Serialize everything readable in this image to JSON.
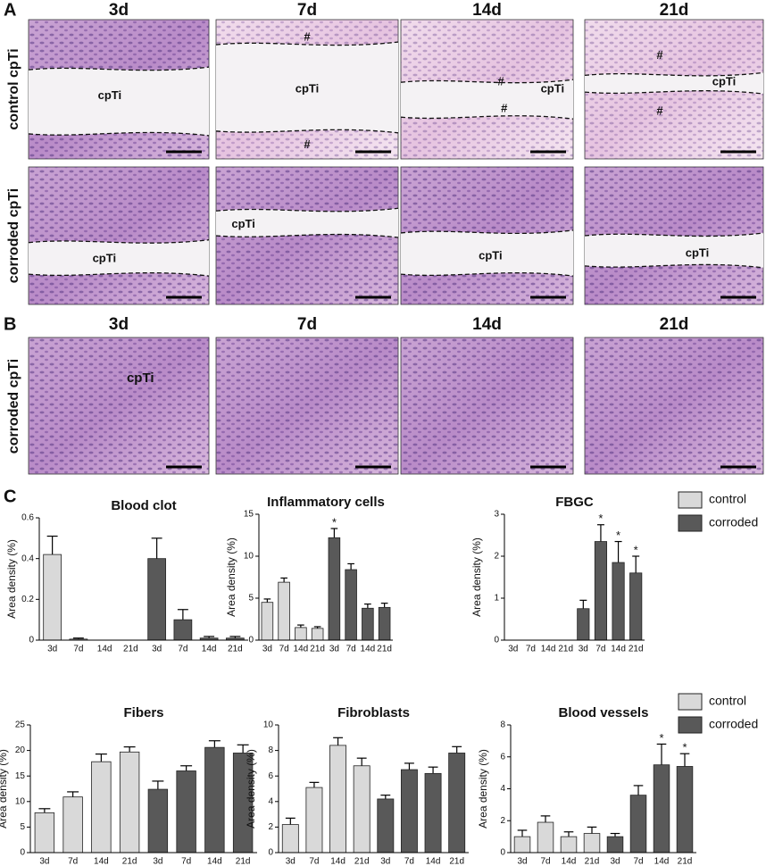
{
  "panel_a": {
    "label": "A",
    "columns": [
      "3d",
      "7d",
      "14d",
      "21d"
    ],
    "rows": [
      {
        "label": "control cpTi",
        "tiles": [
          [
            "cpTi"
          ],
          [
            "#",
            "cpTi",
            "#"
          ],
          [
            "#",
            "cpTi",
            "#"
          ],
          [
            "#",
            "cpTi",
            "#"
          ]
        ]
      },
      {
        "label": "corroded cpTi",
        "tiles": [
          [
            "cpTi"
          ],
          [
            "cpTi"
          ],
          [
            "cpTi"
          ],
          [
            "cpTi"
          ]
        ]
      }
    ]
  },
  "panel_b": {
    "label": "B",
    "columns": [
      "3d",
      "7d",
      "14d",
      "21d"
    ],
    "row_label": "corroded cpTi",
    "tiles": [
      [
        "cpTi"
      ],
      [],
      [],
      []
    ]
  },
  "panel_c": {
    "label": "C"
  },
  "chart_data": [
    {
      "type": "bar",
      "title": "Blood clot",
      "ylabel": "Area density  (%)",
      "categories": [
        "3d",
        "7d",
        "14d",
        "21d"
      ],
      "ylim": [
        0,
        0.6
      ],
      "yticks": [
        0,
        0.2,
        0.4,
        0.6
      ],
      "legend": false,
      "series": [
        {
          "color": "#d9d9d9",
          "values": [
            0.42,
            0.005,
            0,
            0
          ],
          "errors": [
            0.09,
            0.005,
            0,
            0
          ]
        },
        {
          "color": "#595959",
          "values": [
            0.4,
            0.1,
            0.01,
            0.01
          ],
          "errors": [
            0.1,
            0.05,
            0.008,
            0.008
          ]
        }
      ]
    },
    {
      "type": "bar",
      "title": "Inflammatory cells",
      "ylabel": "Area density  (%)",
      "categories": [
        "3d",
        "7d",
        "14d",
        "21d"
      ],
      "ylim": [
        0,
        15
      ],
      "yticks": [
        0,
        5,
        10,
        15
      ],
      "legend": false,
      "series": [
        {
          "color": "#d9d9d9",
          "values": [
            4.5,
            6.9,
            1.5,
            1.4
          ],
          "errors": [
            0.4,
            0.5,
            0.3,
            0.2
          ]
        },
        {
          "color": "#595959",
          "values": [
            12.2,
            8.4,
            3.8,
            3.9
          ],
          "errors": [
            1.1,
            0.7,
            0.5,
            0.5
          ]
        }
      ],
      "annotations": [
        {
          "text": "*",
          "series": 1,
          "index": 0
        }
      ]
    },
    {
      "type": "bar",
      "title": "FBGC",
      "ylabel": "Area density  (%)",
      "categories": [
        "3d",
        "7d",
        "14d",
        "21d"
      ],
      "ylim": [
        0,
        3
      ],
      "yticks": [
        0,
        1,
        2,
        3
      ],
      "legend": true,
      "series": [
        {
          "name": "control",
          "color": "#d9d9d9",
          "values": [
            0,
            0,
            0,
            0
          ],
          "errors": [
            0,
            0,
            0,
            0
          ]
        },
        {
          "name": "corroded",
          "color": "#595959",
          "values": [
            0.75,
            2.35,
            1.85,
            1.6
          ],
          "errors": [
            0.2,
            0.4,
            0.5,
            0.4
          ]
        }
      ],
      "annotations": [
        {
          "text": "*",
          "series": 1,
          "index": 1
        },
        {
          "text": "*",
          "series": 1,
          "index": 2
        },
        {
          "text": "*",
          "series": 1,
          "index": 3
        }
      ]
    },
    {
      "type": "bar",
      "title": "Fibers",
      "ylabel": "Area density  (%)",
      "categories": [
        "3d",
        "7d",
        "14d",
        "21d"
      ],
      "ylim": [
        0,
        25
      ],
      "yticks": [
        0,
        5,
        10,
        15,
        20,
        25
      ],
      "legend": false,
      "series": [
        {
          "color": "#d9d9d9",
          "values": [
            7.8,
            10.9,
            17.8,
            19.7
          ],
          "errors": [
            0.8,
            1,
            1.5,
            1
          ]
        },
        {
          "color": "#595959",
          "values": [
            12.4,
            16,
            20.6,
            19.5
          ],
          "errors": [
            1.6,
            1,
            1.3,
            1.6
          ]
        }
      ]
    },
    {
      "type": "bar",
      "title": "Fibroblasts",
      "ylabel": "Area density  (%)",
      "categories": [
        "3d",
        "7d",
        "14d",
        "21d"
      ],
      "ylim": [
        0,
        10
      ],
      "yticks": [
        0,
        2,
        4,
        6,
        8,
        10
      ],
      "legend": false,
      "series": [
        {
          "color": "#d9d9d9",
          "values": [
            2.2,
            5.1,
            8.4,
            6.8
          ],
          "errors": [
            0.5,
            0.4,
            0.6,
            0.6
          ]
        },
        {
          "color": "#595959",
          "values": [
            4.2,
            6.5,
            6.2,
            7.8
          ],
          "errors": [
            0.3,
            0.5,
            0.5,
            0.5
          ]
        }
      ]
    },
    {
      "type": "bar",
      "title": "Blood vessels",
      "ylabel": "Area density  (%)",
      "categories": [
        "3d",
        "7d",
        "14d",
        "21d"
      ],
      "ylim": [
        0,
        8
      ],
      "yticks": [
        0,
        2,
        4,
        6,
        8
      ],
      "legend": true,
      "series": [
        {
          "name": "control",
          "color": "#d9d9d9",
          "values": [
            1.0,
            1.9,
            1.0,
            1.2
          ],
          "errors": [
            0.4,
            0.4,
            0.3,
            0.4
          ]
        },
        {
          "name": "corroded",
          "color": "#595959",
          "values": [
            1.0,
            3.6,
            5.5,
            5.4
          ],
          "errors": [
            0.2,
            0.6,
            1.3,
            0.8
          ]
        }
      ],
      "annotations": [
        {
          "text": "*",
          "series": 1,
          "index": 2
        },
        {
          "text": "*",
          "series": 1,
          "index": 3
        }
      ]
    }
  ]
}
